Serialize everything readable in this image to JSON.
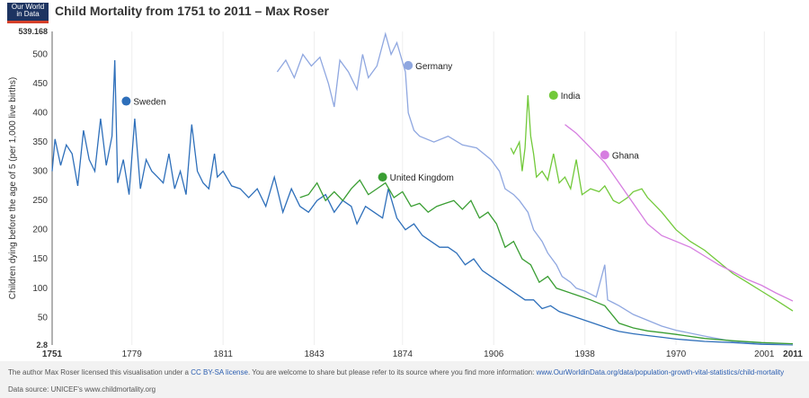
{
  "logo": {
    "line1": "Our World",
    "line2": "in Data"
  },
  "title": "Child Mortality from 1751 to 2011 – Max Roser",
  "footer": {
    "license_pre": "The author Max Roser licensed this visualisation under a ",
    "license_link": "CC BY-SA license",
    "license_post": ". You are welcome to share but please refer to its source where you find more information: ",
    "source_link": "www.OurWorldinData.org/data/population-growth-vital-statistics/child-mortality",
    "data_source": "Data source: UNICEF's www.childmortality.org"
  },
  "chart_data": {
    "type": "line",
    "title": "Child Mortality from 1751 to 2011 – Max Roser",
    "ylabel": "Children dying before the age of 5 (per 1,000 live births)",
    "xlim": [
      1751,
      2011
    ],
    "ylim": [
      2.8,
      539.168
    ],
    "xticks": [
      1751,
      1779,
      1811,
      1843,
      1874,
      1906,
      1938,
      1970,
      2001,
      2011
    ],
    "yticks": [
      2.8,
      50,
      100,
      150,
      200,
      250,
      300,
      350,
      400,
      450,
      500,
      539.168
    ],
    "grid": "vertical",
    "series": [
      {
        "name": "Sweden",
        "color": "#2e6fba",
        "label_at": [
          1777,
          420
        ],
        "x": [
          1751,
          1752,
          1754,
          1756,
          1758,
          1760,
          1762,
          1764,
          1766,
          1768,
          1770,
          1772,
          1773,
          1774,
          1776,
          1778,
          1780,
          1782,
          1784,
          1786,
          1788,
          1790,
          1792,
          1794,
          1796,
          1798,
          1800,
          1802,
          1804,
          1806,
          1808,
          1809,
          1811,
          1814,
          1817,
          1820,
          1823,
          1826,
          1829,
          1832,
          1835,
          1838,
          1841,
          1844,
          1847,
          1850,
          1853,
          1856,
          1858,
          1861,
          1864,
          1867,
          1869,
          1872,
          1875,
          1878,
          1881,
          1884,
          1887,
          1890,
          1893,
          1896,
          1899,
          1902,
          1905,
          1908,
          1911,
          1914,
          1917,
          1920,
          1923,
          1926,
          1929,
          1932,
          1935,
          1938,
          1941,
          1944,
          1947,
          1950,
          1955,
          1960,
          1965,
          1970,
          1980,
          1990,
          2000,
          2011
        ],
        "values": [
          300,
          355,
          310,
          345,
          330,
          275,
          370,
          320,
          300,
          390,
          310,
          360,
          490,
          280,
          320,
          260,
          390,
          270,
          320,
          300,
          290,
          280,
          330,
          270,
          300,
          260,
          380,
          300,
          280,
          270,
          330,
          290,
          300,
          275,
          270,
          255,
          270,
          240,
          290,
          230,
          270,
          240,
          230,
          250,
          260,
          230,
          250,
          240,
          210,
          240,
          230,
          220,
          270,
          220,
          200,
          210,
          190,
          180,
          170,
          170,
          160,
          140,
          150,
          130,
          120,
          110,
          100,
          90,
          80,
          80,
          65,
          70,
          60,
          55,
          50,
          45,
          40,
          35,
          30,
          26,
          22,
          19,
          16,
          13,
          9,
          7,
          4,
          3
        ]
      },
      {
        "name": "Germany",
        "color": "#8fa7e0",
        "label_at": [
          1876,
          481
        ],
        "x": [
          1830,
          1833,
          1836,
          1839,
          1842,
          1845,
          1848,
          1850,
          1852,
          1855,
          1858,
          1860,
          1862,
          1865,
          1868,
          1870,
          1872,
          1875,
          1876,
          1878,
          1880,
          1885,
          1890,
          1895,
          1900,
          1905,
          1908,
          1910,
          1913,
          1915,
          1918,
          1920,
          1923,
          1925,
          1928,
          1930,
          1933,
          1935,
          1938,
          1940,
          1942,
          1945,
          1946,
          1948,
          1950,
          1955,
          1960,
          1965,
          1970,
          1980,
          1990,
          2000,
          2011
        ],
        "values": [
          470,
          490,
          460,
          500,
          480,
          495,
          450,
          410,
          490,
          470,
          440,
          500,
          460,
          480,
          535,
          500,
          520,
          470,
          400,
          370,
          360,
          350,
          360,
          345,
          340,
          320,
          300,
          270,
          260,
          250,
          230,
          200,
          180,
          160,
          140,
          120,
          110,
          100,
          95,
          90,
          85,
          140,
          80,
          75,
          70,
          55,
          45,
          35,
          28,
          18,
          9,
          6,
          4
        ]
      },
      {
        "name": "United Kingdom",
        "color": "#3a9e33",
        "label_at": [
          1867,
          290
        ],
        "x": [
          1838,
          1841,
          1844,
          1847,
          1850,
          1853,
          1856,
          1859,
          1862,
          1865,
          1868,
          1871,
          1874,
          1877,
          1880,
          1883,
          1886,
          1889,
          1892,
          1895,
          1898,
          1901,
          1904,
          1907,
          1910,
          1913,
          1916,
          1919,
          1922,
          1925,
          1928,
          1931,
          1934,
          1937,
          1940,
          1945,
          1950,
          1955,
          1960,
          1965,
          1970,
          1980,
          1990,
          2000,
          2011
        ],
        "values": [
          255,
          260,
          280,
          250,
          265,
          250,
          270,
          285,
          260,
          270,
          280,
          255,
          265,
          240,
          245,
          230,
          240,
          245,
          250,
          235,
          250,
          220,
          230,
          210,
          170,
          180,
          150,
          140,
          110,
          120,
          100,
          95,
          90,
          85,
          80,
          70,
          40,
          32,
          27,
          24,
          21,
          14,
          10,
          7,
          5
        ]
      },
      {
        "name": "India",
        "color": "#72c93a",
        "label_at": [
          1927,
          430
        ],
        "x": [
          1912,
          1913,
          1915,
          1916,
          1917,
          1918,
          1919,
          1920,
          1921,
          1923,
          1925,
          1927,
          1929,
          1931,
          1933,
          1935,
          1937,
          1940,
          1943,
          1945,
          1948,
          1950,
          1953,
          1955,
          1958,
          1960,
          1965,
          1970,
          1975,
          1980,
          1985,
          1990,
          1995,
          2000,
          2005,
          2011
        ],
        "values": [
          340,
          330,
          350,
          300,
          340,
          430,
          360,
          330,
          290,
          300,
          285,
          330,
          280,
          290,
          270,
          320,
          260,
          270,
          265,
          275,
          250,
          245,
          255,
          265,
          270,
          255,
          230,
          200,
          180,
          165,
          145,
          125,
          110,
          95,
          80,
          61
        ]
      },
      {
        "name": "Ghana",
        "color": "#d67ee0",
        "label_at": [
          1945,
          328
        ],
        "x": [
          1931,
          1935,
          1940,
          1945,
          1950,
          1955,
          1960,
          1965,
          1970,
          1975,
          1980,
          1985,
          1990,
          1995,
          2000,
          2005,
          2011
        ],
        "values": [
          380,
          365,
          340,
          315,
          280,
          245,
          210,
          190,
          180,
          170,
          155,
          140,
          128,
          115,
          105,
          92,
          78
        ]
      }
    ]
  }
}
